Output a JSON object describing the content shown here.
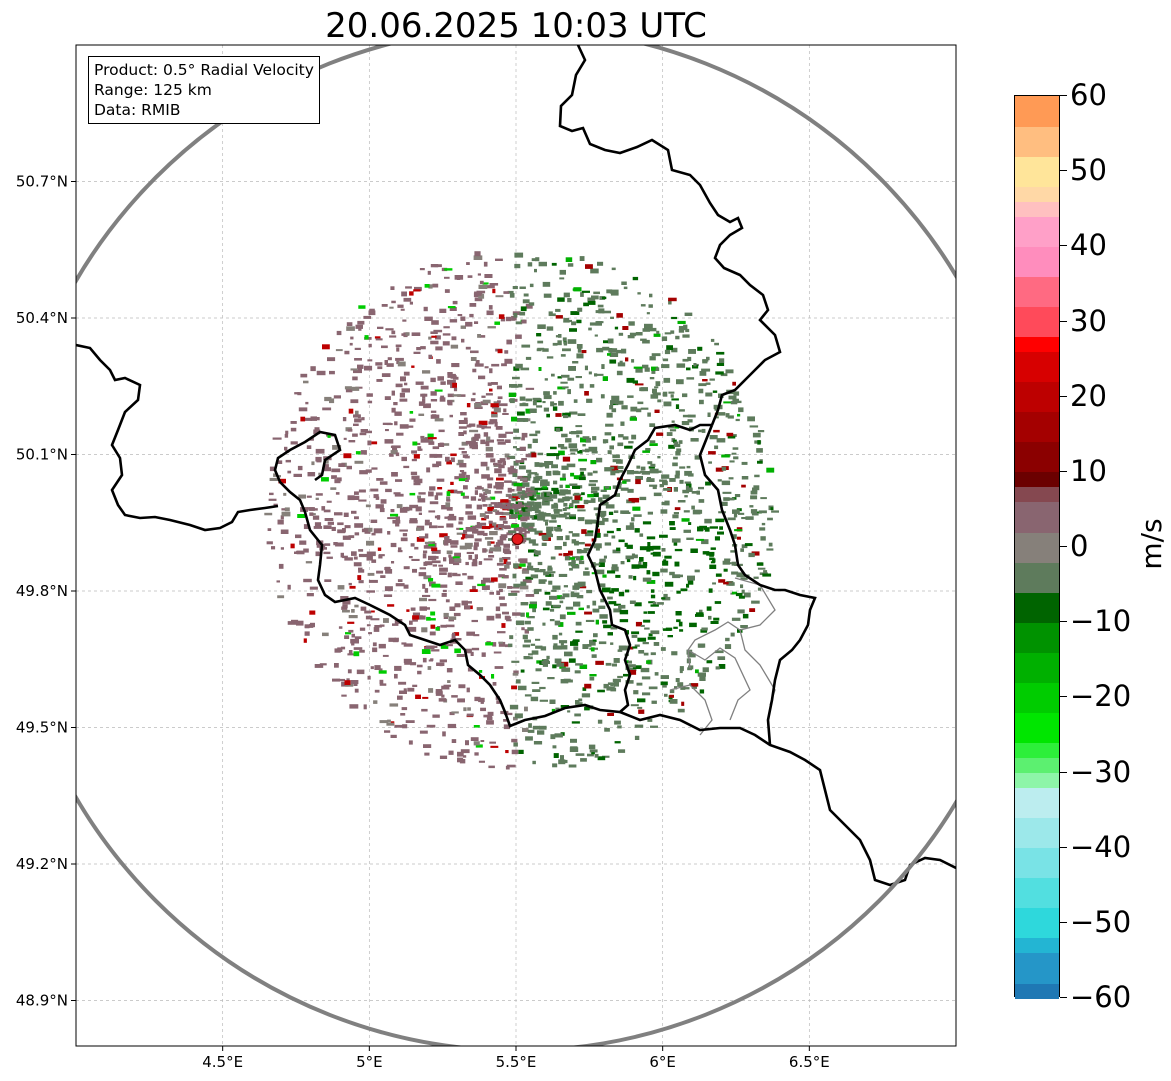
{
  "title": "20.06.2025 10:03 UTC",
  "infobox": {
    "product": "Product: 0.5° Radial Velocity",
    "range": "Range: 125 km",
    "data": "Data: RMIB"
  },
  "map": {
    "lon_range": [
      4.0,
      7.0
    ],
    "lat_range": [
      48.8,
      51.0
    ],
    "radar_center": {
      "lon": 5.505,
      "lat": 49.914
    },
    "range_ring_km": 125,
    "gridlines": "dashed",
    "lon_ticks": [
      {
        "value": 4.5,
        "label": "4.5°E"
      },
      {
        "value": 5.0,
        "label": "5°E"
      },
      {
        "value": 5.5,
        "label": "5.5°E"
      },
      {
        "value": 6.0,
        "label": "6°E"
      },
      {
        "value": 6.5,
        "label": "6.5°E"
      }
    ],
    "lat_ticks": [
      {
        "value": 48.9,
        "label": "48.9°N"
      },
      {
        "value": 49.2,
        "label": "49.2°N"
      },
      {
        "value": 49.5,
        "label": "49.5°N"
      },
      {
        "value": 49.8,
        "label": "49.8°N"
      },
      {
        "value": 50.1,
        "label": "50.1°N"
      },
      {
        "value": 50.4,
        "label": "50.4°N"
      },
      {
        "value": 50.7,
        "label": "50.7°N"
      }
    ],
    "colors": {
      "borders": "#000000",
      "admin_borders": "#808080",
      "range_ring": "#808080",
      "radar_marker": "#e31a1c"
    }
  },
  "colorbar": {
    "label": "m/s",
    "min": -60,
    "max": 60,
    "ticks": [
      {
        "value": 60,
        "label": "60"
      },
      {
        "value": 50,
        "label": "50"
      },
      {
        "value": 40,
        "label": "40"
      },
      {
        "value": 30,
        "label": "30"
      },
      {
        "value": 20,
        "label": "20"
      },
      {
        "value": 10,
        "label": "10"
      },
      {
        "value": 0,
        "label": "0"
      },
      {
        "value": -10,
        "label": "−10"
      },
      {
        "value": -20,
        "label": "−20"
      },
      {
        "value": -30,
        "label": "−30"
      },
      {
        "value": -40,
        "label": "−40"
      },
      {
        "value": -50,
        "label": "−50"
      },
      {
        "value": -60,
        "label": "−60"
      }
    ],
    "bins": [
      {
        "from": -60,
        "to": -58,
        "color": "#1f78b4"
      },
      {
        "from": -58,
        "to": -54,
        "color": "#2596c8"
      },
      {
        "from": -54,
        "to": -52,
        "color": "#23b5d3"
      },
      {
        "from": -52,
        "to": -48,
        "color": "#2ed8dc"
      },
      {
        "from": -48,
        "to": -44,
        "color": "#52dfe0"
      },
      {
        "from": -44,
        "to": -40,
        "color": "#79e3e6"
      },
      {
        "from": -40,
        "to": -36,
        "color": "#9ce8ea"
      },
      {
        "from": -36,
        "to": -32,
        "color": "#bcedef"
      },
      {
        "from": -32,
        "to": -30,
        "color": "#8df5a8"
      },
      {
        "from": -30,
        "to": -28,
        "color": "#5cf070"
      },
      {
        "from": -28,
        "to": -26,
        "color": "#2def3a"
      },
      {
        "from": -26,
        "to": -22,
        "color": "#00e600"
      },
      {
        "from": -22,
        "to": -18,
        "color": "#00cc00"
      },
      {
        "from": -18,
        "to": -14,
        "color": "#00b000"
      },
      {
        "from": -14,
        "to": -10,
        "color": "#009200"
      },
      {
        "from": -10,
        "to": -6,
        "color": "#006400"
      },
      {
        "from": -6,
        "to": -2,
        "color": "#5e7b5c"
      },
      {
        "from": -2,
        "to": 2,
        "color": "#86807a"
      },
      {
        "from": 2,
        "to": 6,
        "color": "#896570"
      },
      {
        "from": 6,
        "to": 8,
        "color": "#854850"
      },
      {
        "from": 8,
        "to": 10,
        "color": "#6b0000"
      },
      {
        "from": 10,
        "to": 14,
        "color": "#8b0000"
      },
      {
        "from": 14,
        "to": 18,
        "color": "#a40000"
      },
      {
        "from": 18,
        "to": 22,
        "color": "#bd0000"
      },
      {
        "from": 22,
        "to": 26,
        "color": "#d70000"
      },
      {
        "from": 26,
        "to": 28,
        "color": "#ff0000"
      },
      {
        "from": 28,
        "to": 32,
        "color": "#ff4a5a"
      },
      {
        "from": 32,
        "to": 36,
        "color": "#ff6a82"
      },
      {
        "from": 36,
        "to": 40,
        "color": "#ff8dbd"
      },
      {
        "from": 40,
        "to": 44,
        "color": "#ffa0c8"
      },
      {
        "from": 44,
        "to": 46,
        "color": "#ffc0c0"
      },
      {
        "from": 46,
        "to": 48,
        "color": "#ffd8a6"
      },
      {
        "from": 48,
        "to": 52,
        "color": "#ffe59a"
      },
      {
        "from": 52,
        "to": 56,
        "color": "#ffbe80"
      },
      {
        "from": 56,
        "to": 60,
        "color": "#ff9a55"
      }
    ]
  }
}
